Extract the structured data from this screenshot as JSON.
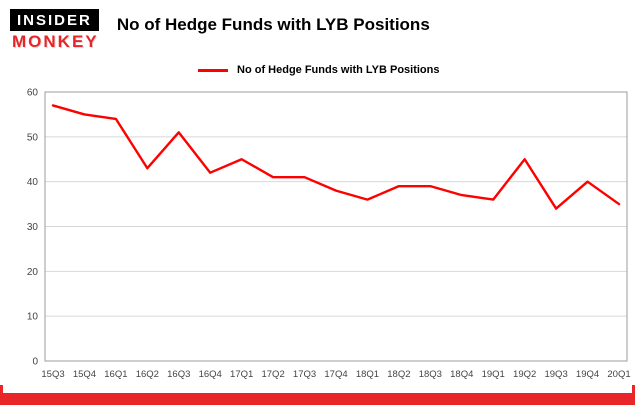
{
  "header": {
    "title": "No of Hedge Funds with LYB Positions",
    "logo_top": "INSIDER",
    "logo_bottom": "MONKEY"
  },
  "legend": {
    "label": "No of Hedge Funds with LYB Positions"
  },
  "colors": {
    "brand_red": "#e8262a",
    "line_red": "#ff0000",
    "gridline": "#d8d8d8",
    "plot_border": "#9e9e9e",
    "axis_text": "#444444"
  },
  "chart_data": {
    "type": "line",
    "title": "No of Hedge Funds with LYB Positions",
    "categories": [
      "15Q3",
      "15Q4",
      "16Q1",
      "16Q2",
      "16Q3",
      "16Q4",
      "17Q1",
      "17Q2",
      "17Q3",
      "17Q4",
      "18Q1",
      "18Q2",
      "18Q3",
      "18Q4",
      "19Q1",
      "19Q2",
      "19Q3",
      "19Q4",
      "20Q1"
    ],
    "series": [
      {
        "name": "No of Hedge Funds with LYB Positions",
        "values": [
          57,
          55,
          54,
          43,
          51,
          42,
          45,
          41,
          41,
          38,
          36,
          39,
          39,
          37,
          36,
          45,
          34,
          40,
          35
        ]
      }
    ],
    "ylim": [
      0,
      60
    ],
    "yticks": [
      0,
      10,
      20,
      30,
      40,
      50,
      60
    ],
    "line_color": "#ff0000",
    "grid": true,
    "legend_position": "top"
  }
}
